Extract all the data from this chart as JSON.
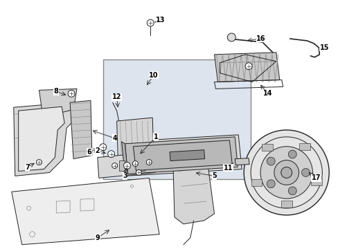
{
  "background_color": "#ffffff",
  "fig_width": 4.89,
  "fig_height": 3.6,
  "dpi": 100,
  "line_color": "#222222",
  "gray_fill": "#e8e8e8",
  "box_fill": "#dde4ee",
  "box_edge": "#888888",
  "font_size": 7.0
}
